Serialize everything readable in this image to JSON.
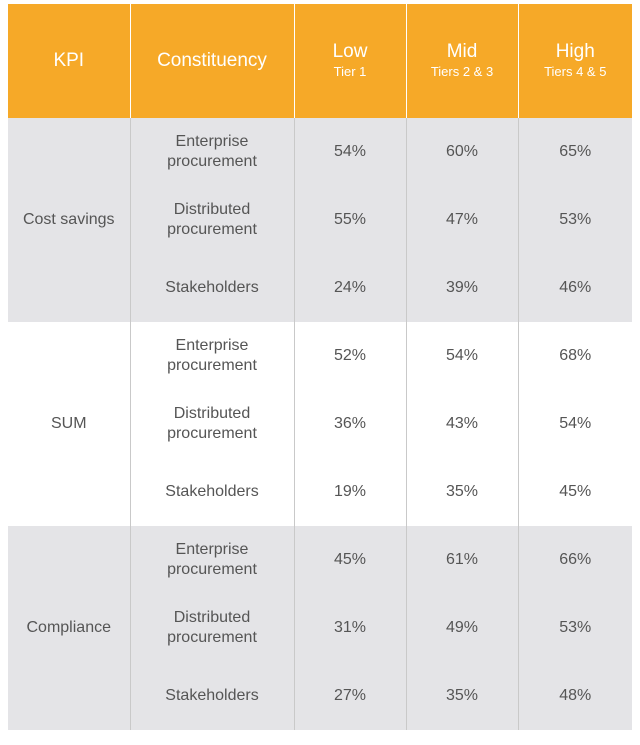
{
  "header": {
    "kpi": "KPI",
    "constituency": "Constituency",
    "tiers": [
      {
        "label": "Low",
        "sub": "Tier 1"
      },
      {
        "label": "Mid",
        "sub": "Tiers 2 & 3"
      },
      {
        "label": "High",
        "sub": "Tiers 4 & 5"
      }
    ]
  },
  "groups": [
    {
      "kpi": "Cost savings",
      "rows": [
        {
          "constituency": "Enterprise procurement",
          "low": "54%",
          "mid": "60%",
          "high": "65%"
        },
        {
          "constituency": "Distributed procurement",
          "low": "55%",
          "mid": "47%",
          "high": "53%"
        },
        {
          "constituency": "Stakeholders",
          "low": "24%",
          "mid": "39%",
          "high": "46%"
        }
      ]
    },
    {
      "kpi": "SUM",
      "rows": [
        {
          "constituency": "Enterprise procurement",
          "low": "52%",
          "mid": "54%",
          "high": "68%"
        },
        {
          "constituency": "Distributed procurement",
          "low": "36%",
          "mid": "43%",
          "high": "54%"
        },
        {
          "constituency": "Stakeholders",
          "low": "19%",
          "mid": "35%",
          "high": "45%"
        }
      ]
    },
    {
      "kpi": "Compliance",
      "rows": [
        {
          "constituency": "Enterprise procurement",
          "low": "45%",
          "mid": "61%",
          "high": "66%"
        },
        {
          "constituency": "Distributed procurement",
          "low": "31%",
          "mid": "49%",
          "high": "53%"
        },
        {
          "constituency": "Stakeholders",
          "low": "27%",
          "mid": "35%",
          "high": "48%"
        }
      ]
    }
  ],
  "colors": {
    "header_bg": "#f6a928",
    "shaded_row": "#e4e4e7",
    "plain_row": "#ffffff",
    "text": "#555555"
  }
}
